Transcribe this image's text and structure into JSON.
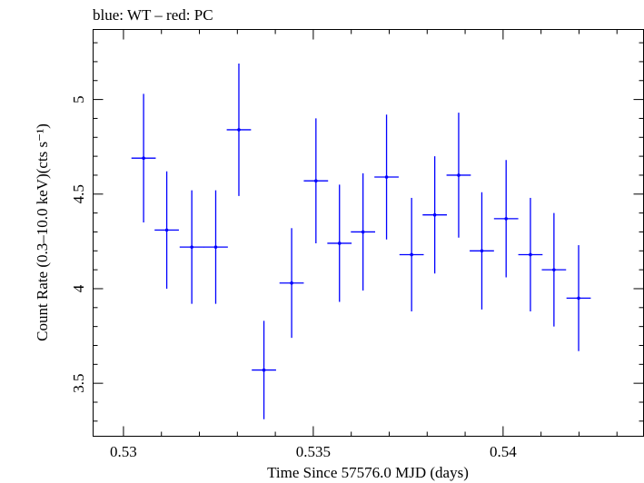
{
  "chart_data": {
    "type": "scatter",
    "title": "blue: WT – red: PC",
    "xlabel": "Time Since 57576.0 MJD (days)",
    "ylabel": "Count Rate (0.3–10.0 keV)(cts s⁻¹)",
    "xlim": [
      0.5292,
      0.5437
    ],
    "ylim": [
      3.22,
      5.37
    ],
    "x_ticks": [
      0.53,
      0.535,
      0.54
    ],
    "x_tick_labels": [
      "0.53",
      "0.535",
      "0.54"
    ],
    "y_ticks": [
      3.5,
      4,
      4.5,
      5
    ],
    "y_tick_labels": [
      "3.5",
      "4",
      "4.5",
      "5"
    ],
    "grid": false,
    "series": [
      {
        "color": "#0000ff",
        "points": [
          {
            "x": 0.53053,
            "xerr": 0.00032,
            "y": 4.69,
            "yerr": 0.34
          },
          {
            "x": 0.53114,
            "xerr": 0.00032,
            "y": 4.31,
            "yerr": 0.31
          },
          {
            "x": 0.5318,
            "xerr": 0.00032,
            "y": 4.22,
            "yerr": 0.3
          },
          {
            "x": 0.53243,
            "xerr": 0.00032,
            "y": 4.22,
            "yerr": 0.3
          },
          {
            "x": 0.53304,
            "xerr": 0.00032,
            "y": 4.84,
            "yerr": 0.35
          },
          {
            "x": 0.5337,
            "xerr": 0.00032,
            "y": 3.57,
            "yerr": 0.26
          },
          {
            "x": 0.53443,
            "xerr": 0.00032,
            "y": 4.03,
            "yerr": 0.29
          },
          {
            "x": 0.53507,
            "xerr": 0.00032,
            "y": 4.57,
            "yerr": 0.33
          },
          {
            "x": 0.53569,
            "xerr": 0.00032,
            "y": 4.24,
            "yerr": 0.31
          },
          {
            "x": 0.53631,
            "xerr": 0.00032,
            "y": 4.3,
            "yerr": 0.31
          },
          {
            "x": 0.53693,
            "xerr": 0.00032,
            "y": 4.59,
            "yerr": 0.33
          },
          {
            "x": 0.53759,
            "xerr": 0.00032,
            "y": 4.18,
            "yerr": 0.3
          },
          {
            "x": 0.5382,
            "xerr": 0.00032,
            "y": 4.39,
            "yerr": 0.31
          },
          {
            "x": 0.53883,
            "xerr": 0.00032,
            "y": 4.6,
            "yerr": 0.33
          },
          {
            "x": 0.53944,
            "xerr": 0.00032,
            "y": 4.2,
            "yerr": 0.31
          },
          {
            "x": 0.54008,
            "xerr": 0.00032,
            "y": 4.37,
            "yerr": 0.31
          },
          {
            "x": 0.54072,
            "xerr": 0.00032,
            "y": 4.18,
            "yerr": 0.3
          },
          {
            "x": 0.54134,
            "xerr": 0.00032,
            "y": 4.1,
            "yerr": 0.3
          },
          {
            "x": 0.54199,
            "xerr": 0.00032,
            "y": 3.95,
            "yerr": 0.28
          }
        ]
      }
    ]
  }
}
